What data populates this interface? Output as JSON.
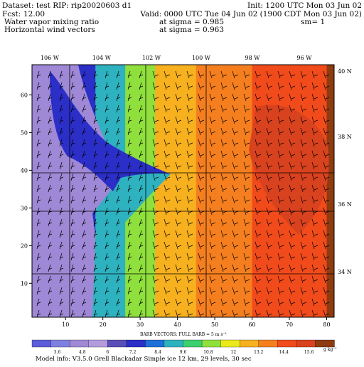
{
  "header": {
    "line1_left": "Dataset: test   RIP: rip20020603 d1",
    "line1_right": "Init: 1200 UTC Mon 03 Jun 02",
    "line2_fcst_label": "Fcst:",
    "line2_fcst_value": "12.00",
    "line2_valid": "Valid: 0000 UTC Tue 04 Jun 02 (1900 CDT Mon 03 Jun 02)",
    "line3_field": "Water vapor mixing ratio",
    "line3_level": "at sigma = 0.985",
    "line3_sm": "sm= 1",
    "line4_field": "Horizontal wind vectors",
    "line4_level": "at sigma = 0.963"
  },
  "colors": {
    "scale": [
      "#5d5ddb",
      "#7f7fe0",
      "#9f88d6",
      "#b49bde",
      "#5a4fb8",
      "#2b2fc7",
      "#1f6fd9",
      "#2eb2c0",
      "#3ccf6e",
      "#8fe03c",
      "#e9e91b",
      "#f7b01e",
      "#f57f1f",
      "#f14b1c",
      "#d9421e",
      "#8e3b10"
    ]
  },
  "chart_data": {
    "type": "heatmap",
    "top_lon_labels": [
      "106 W",
      "104 W",
      "102 W",
      "100 W",
      "98 W",
      "96 W"
    ],
    "right_lat_labels": [
      "40 N",
      "38 N",
      "36 N",
      "34 N"
    ],
    "x_ticks": [
      "10",
      "20",
      "30",
      "40",
      "50",
      "60",
      "70",
      "80"
    ],
    "y_ticks": [
      "10",
      "20",
      "30",
      "40",
      "50",
      "60"
    ],
    "xlim": [
      1,
      82
    ],
    "ylim": [
      1,
      68
    ],
    "colorbar_labels": [
      "3.6",
      "4.8",
      "6",
      "7.2",
      "8.4",
      "9.6",
      "10.8",
      "12",
      "13.2",
      "14.4",
      "15.6"
    ],
    "colorbar_units": "g kg⁻¹",
    "barb_caption": "BARB VECTORS:  FULL BARB = 5 m s⁻¹",
    "field_classes_by_column_band": [
      {
        "x_range": [
          1,
          8
        ],
        "level_index": 2
      },
      {
        "x_range": [
          8,
          18
        ],
        "level_index": 5
      },
      {
        "x_range": [
          18,
          26
        ],
        "level_index": 7
      },
      {
        "x_range": [
          26,
          34
        ],
        "level_index": 9
      },
      {
        "x_range": [
          34,
          45
        ],
        "level_index": 11
      },
      {
        "x_range": [
          45,
          60
        ],
        "level_index": 12
      },
      {
        "x_range": [
          60,
          80
        ],
        "level_index": 13
      },
      {
        "x_range": [
          80,
          82
        ],
        "level_index": 15
      }
    ]
  },
  "footer": {
    "model_info": "Model info: V3.5.0   Grell      Blackadar   Simple ice     12 km,   29 levels,    30 sec"
  }
}
